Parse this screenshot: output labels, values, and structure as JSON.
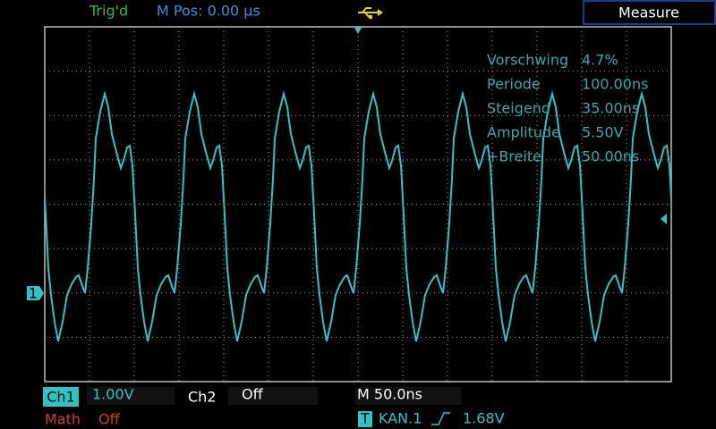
{
  "header": {
    "status": "Trig'd",
    "position": "M Pos: 0.00 µs",
    "menu_title": "Measure"
  },
  "channel_marker": "1",
  "measurements": [
    {
      "label": "Vorschwing",
      "value": "4.7%"
    },
    {
      "label": "Periode",
      "value": "100.00ns"
    },
    {
      "label": "Steigend",
      "value": "35.00ns"
    },
    {
      "label": "Amplitude",
      "value": "5.50V"
    },
    {
      "label": "+Breite",
      "value": "50.00ns"
    }
  ],
  "footer": {
    "ch1_label": "Ch1",
    "ch1_scale": "1.00V",
    "ch2_label": "Ch2",
    "ch2_scale": "Off",
    "timebase": "M 50.0ns",
    "math_label": "Math",
    "math_state": "Off",
    "trigger_icon": "T",
    "trigger_source": "KAN.1",
    "trigger_level": "1.68V"
  }
}
